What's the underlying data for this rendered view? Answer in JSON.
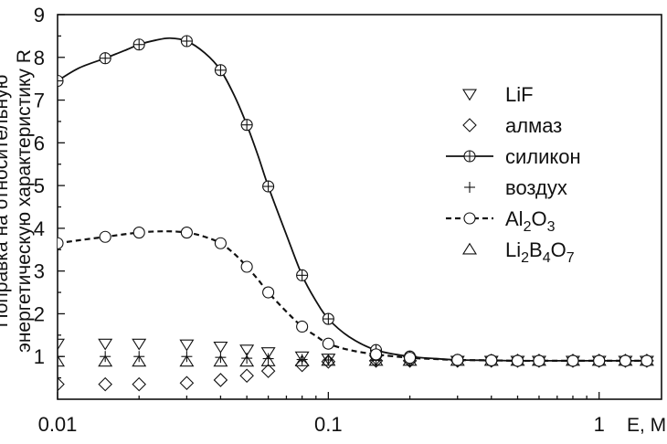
{
  "chart_data": {
    "type": "line",
    "title": "",
    "xlabel": "E, МэВ",
    "ylabel_lines": [
      "Поправка на относительную",
      "энергетическую характеристику R"
    ],
    "x_scale": "log",
    "xlim": [
      0.01,
      1.7
    ],
    "ylim": [
      0,
      9
    ],
    "x_ticks": [
      0.01,
      0.1,
      1
    ],
    "x_tick_labels": [
      "0.01",
      "0.1",
      "1"
    ],
    "y_ticks": [
      1,
      2,
      3,
      4,
      5,
      6,
      7,
      8,
      9
    ],
    "y_tick_labels": [
      "1",
      "2",
      "3",
      "4",
      "5",
      "6",
      "7",
      "8",
      "9"
    ],
    "legend_position": "right",
    "series": [
      {
        "name": "LiF",
        "legend_label": "LiF",
        "marker": "triangle-down",
        "line": "none",
        "x": [
          0.01,
          0.015,
          0.02,
          0.03,
          0.04,
          0.05,
          0.06,
          0.08,
          0.1,
          0.15,
          0.2,
          0.3,
          0.4,
          0.5,
          0.6,
          0.8,
          1.0,
          1.25,
          1.5
        ],
        "y": [
          1.3,
          1.3,
          1.3,
          1.28,
          1.23,
          1.16,
          1.1,
          1.0,
          0.95,
          0.92,
          0.9,
          0.9,
          0.9,
          0.9,
          0.9,
          0.9,
          0.9,
          0.9,
          0.9
        ]
      },
      {
        "name": "алмаз",
        "legend_label": "алмаз",
        "marker": "diamond",
        "line": "none",
        "x": [
          0.01,
          0.015,
          0.02,
          0.03,
          0.04,
          0.05,
          0.06,
          0.08,
          0.1,
          0.15,
          0.2,
          0.3,
          0.4,
          0.5,
          0.6,
          0.8,
          1.0,
          1.25,
          1.5
        ],
        "y": [
          0.35,
          0.35,
          0.35,
          0.38,
          0.45,
          0.55,
          0.66,
          0.8,
          0.88,
          0.9,
          0.9,
          0.9,
          0.9,
          0.9,
          0.9,
          0.9,
          0.9,
          0.9,
          0.9
        ]
      },
      {
        "name": "силикон",
        "legend_label": "силикон",
        "marker": "circle-plus",
        "line": "solid",
        "x": [
          0.01,
          0.015,
          0.02,
          0.03,
          0.04,
          0.05,
          0.06,
          0.08,
          0.1,
          0.15,
          0.2,
          0.3,
          0.4,
          0.5,
          0.6,
          0.8,
          1.0,
          1.25,
          1.5
        ],
        "y": [
          7.45,
          7.98,
          8.3,
          8.38,
          7.7,
          6.42,
          4.98,
          2.9,
          1.88,
          1.15,
          1.0,
          0.92,
          0.91,
          0.9,
          0.9,
          0.9,
          0.9,
          0.9,
          0.9
        ]
      },
      {
        "name": "воздух",
        "legend_label": "воздух",
        "marker": "plus",
        "line": "none",
        "x": [
          0.01,
          0.015,
          0.02,
          0.03,
          0.04,
          0.05,
          0.06,
          0.08,
          0.1,
          0.15,
          0.2,
          0.3,
          0.4,
          0.5,
          0.6,
          0.8,
          1.0,
          1.25,
          1.5
        ],
        "y": [
          1.0,
          1.0,
          1.0,
          1.0,
          0.98,
          0.96,
          0.95,
          0.93,
          0.92,
          0.91,
          0.9,
          0.9,
          0.9,
          0.9,
          0.9,
          0.9,
          0.9,
          0.9,
          0.9
        ]
      },
      {
        "name": "Al2O3",
        "legend_label_parts": [
          [
            "Al",
            false
          ],
          [
            "2",
            true
          ],
          [
            "O",
            false
          ],
          [
            "3",
            true
          ]
        ],
        "marker": "circle",
        "line": "dashed",
        "x": [
          0.01,
          0.015,
          0.02,
          0.03,
          0.04,
          0.05,
          0.06,
          0.08,
          0.1,
          0.15,
          0.2,
          0.3,
          0.4,
          0.5,
          0.6,
          0.8,
          1.0,
          1.25,
          1.5
        ],
        "y": [
          3.65,
          3.8,
          3.9,
          3.9,
          3.65,
          3.1,
          2.5,
          1.7,
          1.3,
          1.05,
          0.97,
          0.92,
          0.91,
          0.9,
          0.9,
          0.9,
          0.9,
          0.9,
          0.9
        ]
      },
      {
        "name": "Li2B4O7",
        "legend_label_parts": [
          [
            "Li",
            false
          ],
          [
            "2",
            true
          ],
          [
            "B",
            false
          ],
          [
            "4",
            true
          ],
          [
            "O",
            false
          ],
          [
            "7",
            true
          ]
        ],
        "marker": "triangle-up",
        "line": "none",
        "x": [
          0.01,
          0.015,
          0.02,
          0.03,
          0.04,
          0.05,
          0.06,
          0.08,
          0.1,
          0.15,
          0.2,
          0.3,
          0.4,
          0.5,
          0.6,
          0.8,
          1.0,
          1.25,
          1.5
        ],
        "y": [
          0.88,
          0.88,
          0.88,
          0.88,
          0.88,
          0.88,
          0.89,
          0.89,
          0.9,
          0.9,
          0.9,
          0.9,
          0.9,
          0.9,
          0.9,
          0.9,
          0.9,
          0.9,
          0.9
        ]
      }
    ],
    "curves": {
      "силикон": {
        "x": [
          0.01,
          0.012,
          0.015,
          0.018,
          0.02,
          0.023,
          0.026,
          0.03,
          0.035,
          0.04,
          0.045,
          0.05,
          0.055,
          0.06,
          0.07,
          0.08,
          0.09,
          0.1,
          0.12,
          0.15,
          0.2,
          0.25,
          0.3,
          0.4,
          0.5,
          0.7,
          1.0,
          1.5
        ],
        "y": [
          7.45,
          7.75,
          7.98,
          8.18,
          8.3,
          8.4,
          8.45,
          8.38,
          8.1,
          7.7,
          7.1,
          6.42,
          5.7,
          4.98,
          3.85,
          2.9,
          2.3,
          1.88,
          1.45,
          1.15,
          1.0,
          0.95,
          0.92,
          0.91,
          0.9,
          0.9,
          0.9,
          0.9
        ]
      },
      "Al2O3": {
        "x": [
          0.01,
          0.012,
          0.015,
          0.02,
          0.025,
          0.03,
          0.035,
          0.04,
          0.045,
          0.05,
          0.055,
          0.06,
          0.07,
          0.08,
          0.09,
          0.1,
          0.12,
          0.15,
          0.2,
          0.25,
          0.3,
          0.4,
          0.5,
          0.7,
          1.0,
          1.5
        ],
        "y": [
          3.65,
          3.72,
          3.8,
          3.9,
          3.93,
          3.9,
          3.8,
          3.65,
          3.4,
          3.1,
          2.8,
          2.5,
          2.05,
          1.7,
          1.48,
          1.3,
          1.15,
          1.05,
          0.97,
          0.94,
          0.92,
          0.91,
          0.9,
          0.9,
          0.9,
          0.9
        ]
      }
    }
  }
}
